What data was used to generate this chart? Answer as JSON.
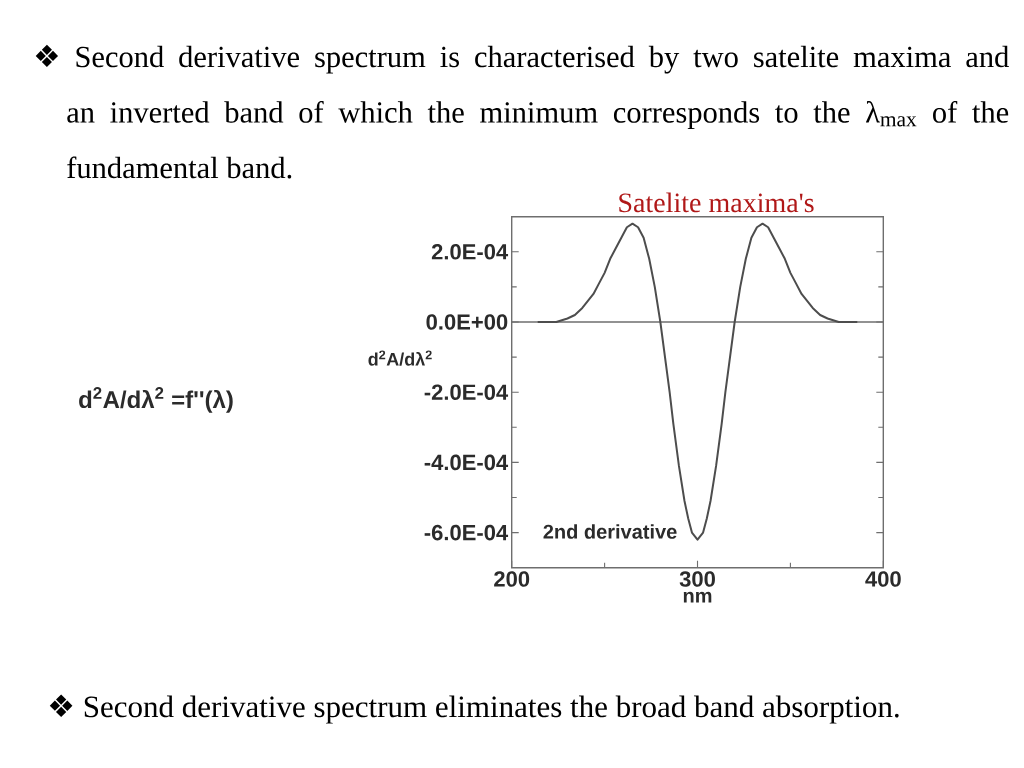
{
  "chart_data": {
    "type": "line",
    "title": "❖ Second derivative spectrum is characterised by two satelite maxima and an inverted band of which the minimum corresponds to the λ$_{max}$ of the fundamental band.",
    "xlabel": "nm",
    "ylabel": "d$^{2}$A/dλ$^{2}$",
    "annotations": [
      "Satelite maxima's",
      "d$^{2}$A/dλ$^{2}$ =f''(λ)",
      "❖ Second derivative spectrum eliminates the broad band absorption."
    ],
    "x": [
      214,
      224,
      230,
      234,
      238,
      241,
      244,
      247,
      250,
      253,
      256,
      259,
      262,
      265,
      268,
      271,
      274,
      277,
      280,
      283,
      285,
      287,
      290,
      293,
      295,
      297,
      300,
      303,
      305,
      307,
      310,
      313,
      315,
      317,
      320,
      323,
      326,
      329,
      332,
      335,
      338,
      341,
      344,
      347,
      350,
      353,
      356,
      359,
      362,
      366,
      370,
      376,
      386
    ],
    "series": [
      {
        "name": "2nd derivative",
        "color": "#4d4d4d",
        "values": [
          0,
          0,
          1e-05,
          2e-05,
          4e-05,
          6e-05,
          8e-05,
          0.00011,
          0.00014,
          0.00018,
          0.00021,
          0.00024,
          0.00027,
          0.00028,
          0.00027,
          0.00024,
          0.00018,
          0.0001,
          0,
          -0.00012,
          -0.0002,
          -0.00029,
          -0.00041,
          -0.00051,
          -0.00056,
          -0.0006,
          -0.00062,
          -0.0006,
          -0.00056,
          -0.00051,
          -0.00041,
          -0.00029,
          -0.0002,
          -0.00012,
          0,
          0.0001,
          0.00018,
          0.00024,
          0.00027,
          0.00028,
          0.00027,
          0.00024,
          0.00021,
          0.00018,
          0.00014,
          0.00011,
          8e-05,
          6e-05,
          4e-05,
          2e-05,
          1e-05,
          0,
          0
        ]
      }
    ],
    "xlim": [
      200,
      400
    ],
    "xticks": [
      200,
      {
        "value": 250,
        "label": null
      },
      300,
      {
        "value": 350,
        "label": null
      },
      400
    ],
    "ylim": [
      -0.0007,
      0.0003
    ],
    "yticks": [
      {
        "value": 0.0002,
        "label": "2.0E-04"
      },
      {
        "value": 0.0001,
        "label": null
      },
      {
        "value": 0,
        "label": "0.0E+00"
      },
      {
        "value": -0.0001,
        "label": null
      },
      {
        "value": -0.0002,
        "label": "-2.0E-04"
      },
      {
        "value": -0.0003,
        "label": null
      },
      {
        "value": -0.0004,
        "label": "-4.0E-04"
      },
      {
        "value": -0.0005,
        "label": null
      },
      {
        "value": -0.0006,
        "label": "-6.0E-04"
      }
    ],
    "ref_lines": [
      {
        "axis": "y",
        "value": 0,
        "color": "#6e6e6e"
      }
    ]
  }
}
